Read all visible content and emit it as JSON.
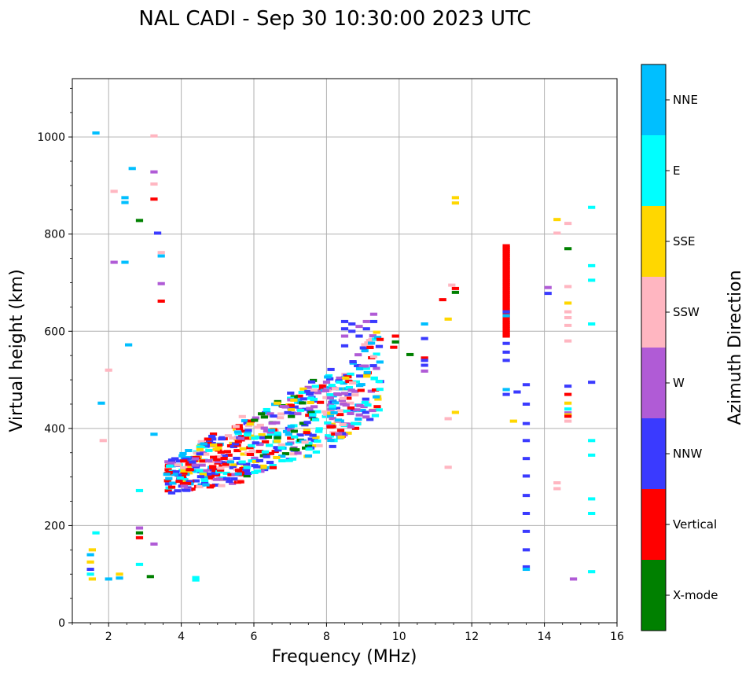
{
  "chart_data": {
    "type": "scatter",
    "title": "NAL CADI - Sep 30 10:30:00 2023 UTC",
    "xlabel": "Frequency (MHz)",
    "ylabel": "Virtual height (km)",
    "xlim": [
      1,
      16
    ],
    "ylim": [
      0,
      1120
    ],
    "xticks": [
      2,
      4,
      6,
      8,
      10,
      12,
      14,
      16
    ],
    "yticks": [
      0,
      200,
      400,
      600,
      800,
      1000
    ],
    "grid": true,
    "colorbar": {
      "label": "Azimuth Direction",
      "categories": [
        {
          "name": "X-mode",
          "color": "#008000"
        },
        {
          "name": "Vertical",
          "color": "#ff0000"
        },
        {
          "name": "NNW",
          "color": "#3a3aff"
        },
        {
          "name": "W",
          "color": "#b05bd6"
        },
        {
          "name": "SSW",
          "color": "#ffb6c1"
        },
        {
          "name": "SSE",
          "color": "#ffd700"
        },
        {
          "name": "E",
          "color": "#00ffff"
        },
        {
          "name": "NNE",
          "color": "#00bfff"
        }
      ]
    },
    "echoes": [
      {
        "f": 1.5,
        "h": 140,
        "c": "NNE"
      },
      {
        "f": 1.5,
        "h": 125,
        "c": "SSE"
      },
      {
        "f": 1.5,
        "h": 110,
        "c": "NNW"
      },
      {
        "f": 1.5,
        "h": 100,
        "c": "E"
      },
      {
        "f": 1.55,
        "h": 150,
        "c": "SSE"
      },
      {
        "f": 1.55,
        "h": 90,
        "c": "SSE"
      },
      {
        "f": 1.65,
        "h": 1008,
        "c": "NNE"
      },
      {
        "f": 1.65,
        "h": 185,
        "c": "E"
      },
      {
        "f": 1.8,
        "h": 452,
        "c": "NNE"
      },
      {
        "f": 1.85,
        "h": 375,
        "c": "SSW"
      },
      {
        "f": 2.0,
        "h": 90,
        "c": "NNE"
      },
      {
        "f": 2.0,
        "h": 520,
        "c": "SSW"
      },
      {
        "f": 2.15,
        "h": 888,
        "c": "SSW"
      },
      {
        "f": 2.15,
        "h": 742,
        "c": "W"
      },
      {
        "f": 2.3,
        "h": 100,
        "c": "SSE"
      },
      {
        "f": 2.3,
        "h": 92,
        "c": "NNE"
      },
      {
        "f": 2.45,
        "h": 875,
        "c": "NNE"
      },
      {
        "f": 2.45,
        "h": 865,
        "c": "NNE"
      },
      {
        "f": 2.45,
        "h": 742,
        "c": "NNE"
      },
      {
        "f": 2.55,
        "h": 572,
        "c": "NNE"
      },
      {
        "f": 2.65,
        "h": 935,
        "c": "NNE"
      },
      {
        "f": 2.85,
        "h": 828,
        "c": "X-mode"
      },
      {
        "f": 2.85,
        "h": 272,
        "c": "E"
      },
      {
        "f": 2.85,
        "h": 195,
        "c": "W"
      },
      {
        "f": 2.85,
        "h": 185,
        "c": "X-mode"
      },
      {
        "f": 2.85,
        "h": 175,
        "c": "Vertical"
      },
      {
        "f": 2.85,
        "h": 120,
        "c": "E"
      },
      {
        "f": 3.15,
        "h": 95,
        "c": "X-mode"
      },
      {
        "f": 3.25,
        "h": 1002,
        "c": "SSW"
      },
      {
        "f": 3.25,
        "h": 928,
        "c": "W"
      },
      {
        "f": 3.25,
        "h": 903,
        "c": "SSW"
      },
      {
        "f": 3.25,
        "h": 872,
        "c": "Vertical"
      },
      {
        "f": 3.25,
        "h": 388,
        "c": "NNE"
      },
      {
        "f": 3.25,
        "h": 162,
        "c": "W"
      },
      {
        "f": 3.35,
        "h": 802,
        "c": "NNW"
      },
      {
        "f": 3.45,
        "h": 762,
        "c": "SSW"
      },
      {
        "f": 3.45,
        "h": 755,
        "c": "NNE"
      },
      {
        "f": 3.45,
        "h": 698,
        "c": "W"
      },
      {
        "f": 3.45,
        "h": 662,
        "c": "Vertical"
      },
      {
        "f": 4.4,
        "h": 93,
        "c": "E"
      },
      {
        "f": 4.4,
        "h": 88,
        "c": "E"
      },
      {
        "f": 8.5,
        "h": 620,
        "c": "NNW"
      },
      {
        "f": 8.5,
        "h": 605,
        "c": "NNW"
      },
      {
        "f": 8.5,
        "h": 590,
        "c": "W"
      },
      {
        "f": 8.5,
        "h": 570,
        "c": "NNW"
      },
      {
        "f": 8.7,
        "h": 615,
        "c": "NNW"
      },
      {
        "f": 8.7,
        "h": 600,
        "c": "NNW"
      },
      {
        "f": 8.9,
        "h": 610,
        "c": "W"
      },
      {
        "f": 8.9,
        "h": 590,
        "c": "NNW"
      },
      {
        "f": 9.1,
        "h": 620,
        "c": "W"
      },
      {
        "f": 9.1,
        "h": 605,
        "c": "NNW"
      },
      {
        "f": 9.3,
        "h": 635,
        "c": "W"
      },
      {
        "f": 9.3,
        "h": 620,
        "c": "NNW"
      },
      {
        "f": 9.9,
        "h": 590,
        "c": "Vertical"
      },
      {
        "f": 9.9,
        "h": 578,
        "c": "X-mode"
      },
      {
        "f": 9.85,
        "h": 567,
        "c": "Vertical"
      },
      {
        "f": 10.3,
        "h": 552,
        "c": "X-mode"
      },
      {
        "f": 10.7,
        "h": 615,
        "c": "NNE"
      },
      {
        "f": 10.7,
        "h": 585,
        "c": "NNW"
      },
      {
        "f": 10.7,
        "h": 545,
        "c": "Vertical"
      },
      {
        "f": 10.7,
        "h": 540,
        "c": "NNW"
      },
      {
        "f": 10.7,
        "h": 530,
        "c": "NNW"
      },
      {
        "f": 10.7,
        "h": 518,
        "c": "W"
      },
      {
        "f": 11.2,
        "h": 665,
        "c": "Vertical"
      },
      {
        "f": 11.35,
        "h": 625,
        "c": "SSE"
      },
      {
        "f": 11.35,
        "h": 420,
        "c": "SSW"
      },
      {
        "f": 11.35,
        "h": 320,
        "c": "SSW"
      },
      {
        "f": 11.45,
        "h": 695,
        "c": "SSW"
      },
      {
        "f": 11.55,
        "h": 688,
        "c": "Vertical"
      },
      {
        "f": 11.55,
        "h": 680,
        "c": "X-mode"
      },
      {
        "f": 11.55,
        "h": 875,
        "c": "SSE"
      },
      {
        "f": 11.55,
        "h": 864,
        "c": "SSE"
      },
      {
        "f": 11.55,
        "h": 433,
        "c": "SSE"
      },
      {
        "f": 13.25,
        "h": 475,
        "c": "NNW"
      },
      {
        "f": 13.15,
        "h": 415,
        "c": "SSE"
      },
      {
        "f": 13.5,
        "h": 490,
        "c": "NNW"
      },
      {
        "f": 13.5,
        "h": 450,
        "c": "NNW"
      },
      {
        "f": 13.5,
        "h": 410,
        "c": "NNW"
      },
      {
        "f": 13.5,
        "h": 375,
        "c": "NNW"
      },
      {
        "f": 13.5,
        "h": 338,
        "c": "NNW"
      },
      {
        "f": 13.5,
        "h": 302,
        "c": "NNW"
      },
      {
        "f": 13.5,
        "h": 262,
        "c": "NNW"
      },
      {
        "f": 13.5,
        "h": 225,
        "c": "NNW"
      },
      {
        "f": 13.5,
        "h": 188,
        "c": "NNW"
      },
      {
        "f": 13.5,
        "h": 150,
        "c": "NNW"
      },
      {
        "f": 13.5,
        "h": 115,
        "c": "NNW"
      },
      {
        "f": 13.5,
        "h": 110,
        "c": "NNE"
      },
      {
        "f": 14.1,
        "h": 690,
        "c": "W"
      },
      {
        "f": 14.1,
        "h": 678,
        "c": "NNW"
      },
      {
        "f": 14.35,
        "h": 830,
        "c": "SSE"
      },
      {
        "f": 14.35,
        "h": 802,
        "c": "SSW"
      },
      {
        "f": 14.35,
        "h": 288,
        "c": "SSW"
      },
      {
        "f": 14.35,
        "h": 276,
        "c": "SSW"
      },
      {
        "f": 14.65,
        "h": 822,
        "c": "SSW"
      },
      {
        "f": 14.65,
        "h": 770,
        "c": "X-mode"
      },
      {
        "f": 14.65,
        "h": 692,
        "c": "SSW"
      },
      {
        "f": 14.65,
        "h": 658,
        "c": "SSE"
      },
      {
        "f": 14.65,
        "h": 640,
        "c": "SSW"
      },
      {
        "f": 14.65,
        "h": 628,
        "c": "SSW"
      },
      {
        "f": 14.65,
        "h": 612,
        "c": "SSW"
      },
      {
        "f": 14.65,
        "h": 580,
        "c": "SSW"
      },
      {
        "f": 14.65,
        "h": 487,
        "c": "NNW"
      },
      {
        "f": 14.65,
        "h": 470,
        "c": "Vertical"
      },
      {
        "f": 14.65,
        "h": 452,
        "c": "SSE"
      },
      {
        "f": 14.65,
        "h": 440,
        "c": "E"
      },
      {
        "f": 14.65,
        "h": 432,
        "c": "W"
      },
      {
        "f": 14.65,
        "h": 428,
        "c": "SSE"
      },
      {
        "f": 14.65,
        "h": 425,
        "c": "Vertical"
      },
      {
        "f": 14.65,
        "h": 415,
        "c": "SSW"
      },
      {
        "f": 14.8,
        "h": 90,
        "c": "W"
      },
      {
        "f": 15.3,
        "h": 855,
        "c": "E"
      },
      {
        "f": 15.3,
        "h": 735,
        "c": "E"
      },
      {
        "f": 15.3,
        "h": 705,
        "c": "E"
      },
      {
        "f": 15.3,
        "h": 615,
        "c": "E"
      },
      {
        "f": 15.3,
        "h": 495,
        "c": "NNW"
      },
      {
        "f": 15.3,
        "h": 375,
        "c": "E"
      },
      {
        "f": 15.3,
        "h": 345,
        "c": "E"
      },
      {
        "f": 15.3,
        "h": 255,
        "c": "E"
      },
      {
        "f": 15.3,
        "h": 225,
        "c": "E"
      },
      {
        "f": 15.3,
        "h": 105,
        "c": "E"
      }
    ],
    "column_echoes": [
      {
        "f": 12.95,
        "h_from": 628,
        "h_to": 778,
        "c": "Vertical"
      },
      {
        "f": 12.95,
        "h_from": 590,
        "h_to": 622,
        "c": "Vertical"
      }
    ],
    "clusters": [
      {
        "f_from": 3.6,
        "f_to": 5.8,
        "h_lo_start": 265,
        "h_lo_end": 290,
        "h_hi_start": 330,
        "h_hi_end": 430,
        "n": 260,
        "colors": [
          "Vertical",
          "Vertical",
          "Vertical",
          "NNW",
          "NNW",
          "NNE",
          "E",
          "W",
          "SSE",
          "SSW"
        ]
      },
      {
        "f_from": 5.8,
        "f_to": 8.2,
        "h_lo_start": 300,
        "h_lo_end": 360,
        "h_hi_start": 420,
        "h_hi_end": 525,
        "n": 240,
        "colors": [
          "E",
          "E",
          "NNE",
          "NNW",
          "NNW",
          "W",
          "SSE",
          "Vertical",
          "SSW",
          "X-mode"
        ]
      },
      {
        "f_from": 8.1,
        "f_to": 9.5,
        "h_lo_start": 370,
        "h_lo_end": 420,
        "h_hi_start": 480,
        "h_hi_end": 620,
        "n": 150,
        "colors": [
          "NNW",
          "W",
          "W",
          "E",
          "NNE",
          "SSE",
          "Vertical",
          "SSW"
        ]
      }
    ]
  }
}
